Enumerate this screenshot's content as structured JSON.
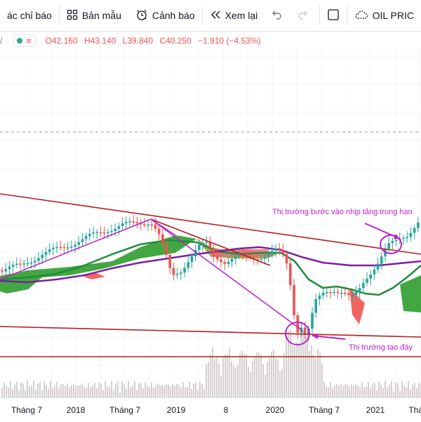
{
  "toolbar": {
    "indicators_label": "ác chỉ báo",
    "templates_label": "Bản mẫu",
    "alerts_label": "Cảnh báo",
    "replay_label": "Xem lại",
    "symbol_label": "OIL PRIC"
  },
  "legend": {
    "open": "O42.160",
    "high": "H43.140",
    "low": "L39.840",
    "close": "C40.250",
    "change": "−1.910 (−4.53%)",
    "down_color": "#ef5350",
    "up_color": "#26a69a"
  },
  "annotations": {
    "mid_term": "Thị trường bước vào nhịp tăng trung hạn",
    "bottom": "Thị trường tạo đáy",
    "color": "#c020c8"
  },
  "x_axis": {
    "labels": [
      "Tháng 7",
      "2018",
      "Tháng 7",
      "2019",
      "8",
      "2020",
      "Tháng 7",
      "2021",
      "Thán"
    ]
  },
  "colors": {
    "trendline": "#b71c1c",
    "ichimoku_cloud_bull": "#2e9d2e",
    "ichimoku_cloud_bear": "#ef5350",
    "ma_green": "#1e8c3a",
    "ma_purple": "#7b1fa2",
    "volume": "#d6cfd2"
  }
}
